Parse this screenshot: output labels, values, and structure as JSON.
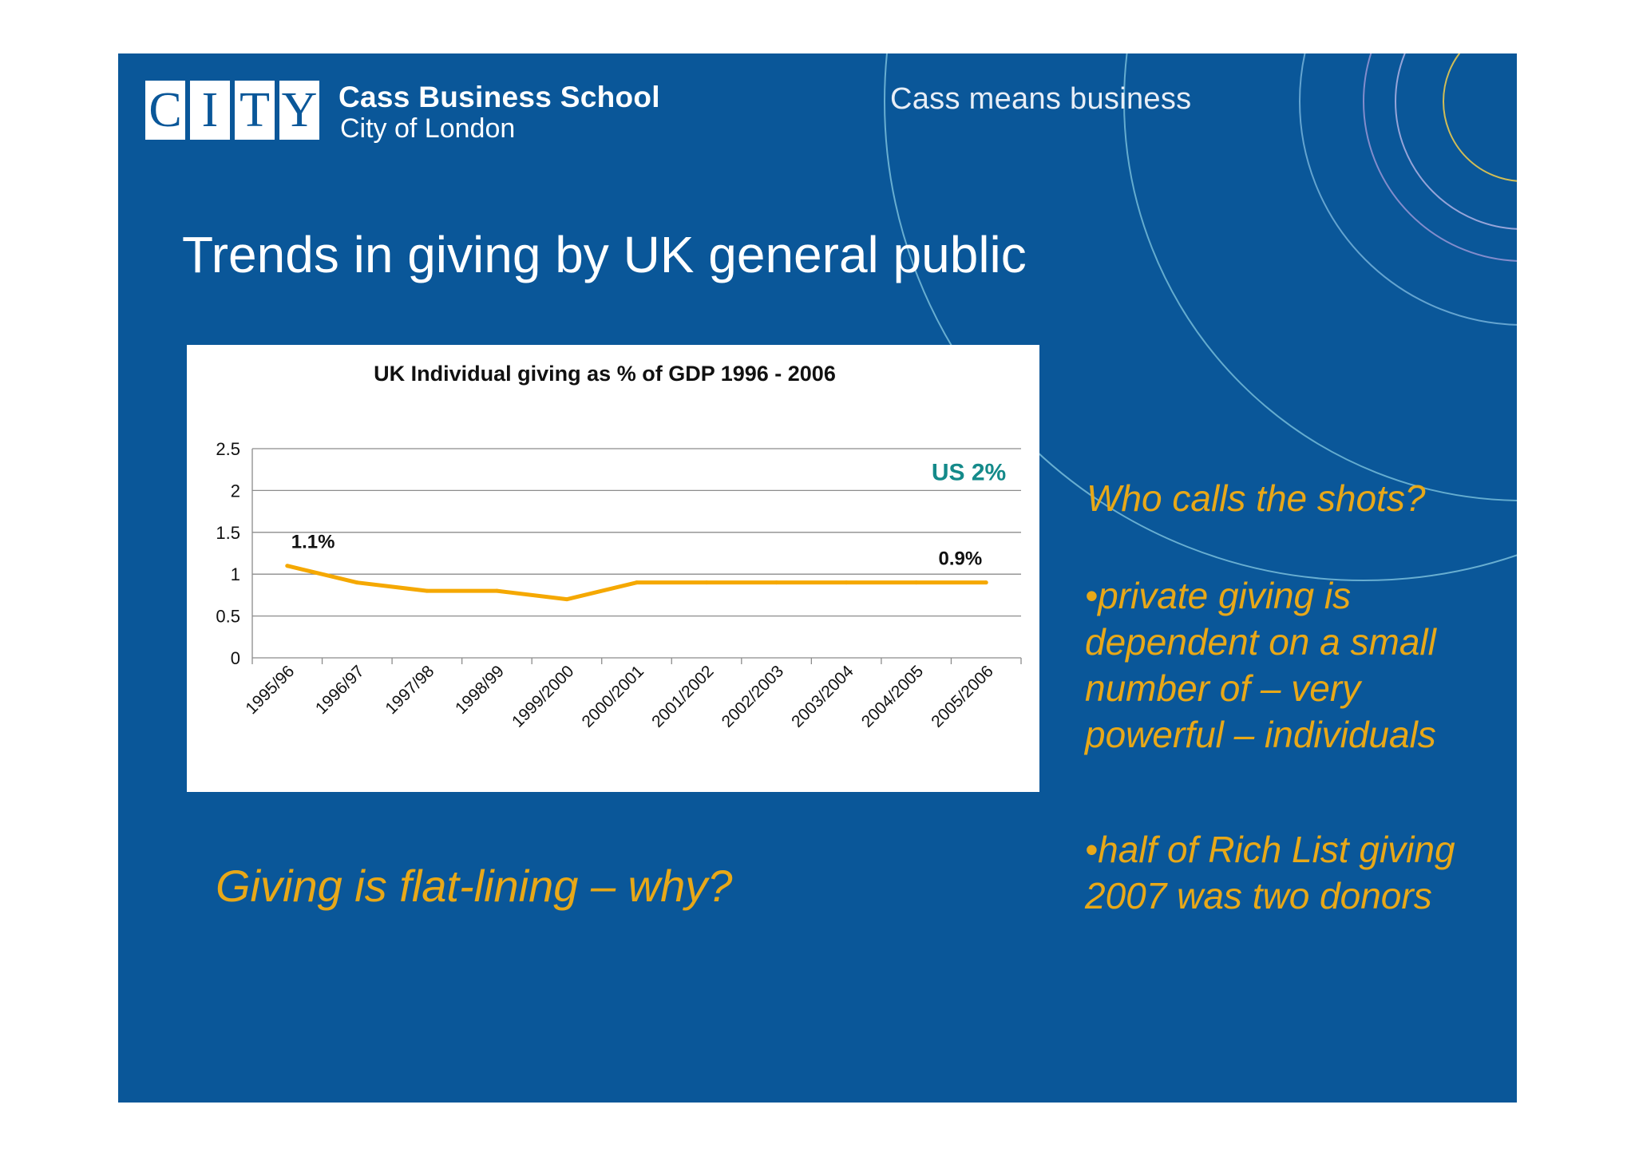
{
  "header": {
    "logo_letters": [
      "C",
      "I",
      "T",
      "Y"
    ],
    "school_name": "Cass Business School",
    "school_sub": "City of London",
    "tagline": "Cass means business"
  },
  "slide_title": "Trends in giving by UK general public",
  "chart_data": {
    "type": "line",
    "title": "UK Individual giving as % of GDP 1996 - 2006",
    "xlabel": "",
    "ylabel": "",
    "categories": [
      "1995/96",
      "1996/97",
      "1997/98",
      "1998/99",
      "1999/2000",
      "2000/2001",
      "2001/2002",
      "2002/2003",
      "2003/2004",
      "2004/2005",
      "2005/2006"
    ],
    "series": [
      {
        "values": [
          1.1,
          0.9,
          0.8,
          0.8,
          0.7,
          0.9,
          0.9,
          0.9,
          0.9,
          0.9,
          0.9
        ],
        "color": "#f5a800"
      }
    ],
    "ylim": [
      0,
      2.5
    ],
    "yticks": [
      "0",
      "0.5",
      "1",
      "1.5",
      "2",
      "2.5"
    ],
    "grid": true,
    "annotations": [
      {
        "text": "1.1%",
        "category": "1995/96",
        "y": 1.1
      },
      {
        "text": "0.9%",
        "category": "2005/2006",
        "y": 0.9
      },
      {
        "text": "US 2%",
        "category": "2005/2006",
        "y": 2.2,
        "color": "#148a8a"
      }
    ]
  },
  "questions": {
    "heading": "Who calls the shots?",
    "points": [
      "•private giving is dependent on a small number of – very powerful – individuals",
      "•half of Rich List giving 2007 was two donors"
    ]
  },
  "conclusion": "Giving is flat-lining –  why?",
  "colors": {
    "slide_bg": "#0a5799",
    "accent": "#e8a818",
    "line": "#f5a800",
    "us_label": "#148a8a"
  }
}
